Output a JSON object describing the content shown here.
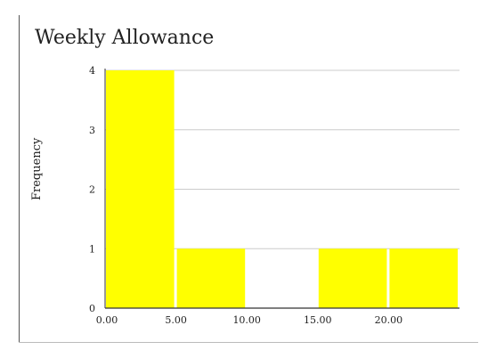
{
  "chart_data": {
    "type": "bar",
    "title": "Weekly Allowance",
    "xlabel": "",
    "ylabel": "Frequency",
    "bins": [
      {
        "start": 0,
        "end": 5,
        "value": 4
      },
      {
        "start": 5,
        "end": 10,
        "value": 1
      },
      {
        "start": 10,
        "end": 15,
        "value": 0
      },
      {
        "start": 15,
        "end": 20,
        "value": 1
      },
      {
        "start": 20,
        "end": 25,
        "value": 1
      }
    ],
    "x_ticks": [
      "0.00",
      "5.00",
      "10.00",
      "15.00",
      "20.00"
    ],
    "y_ticks": [
      "0",
      "1",
      "2",
      "3",
      "4"
    ],
    "xlim": [
      0,
      25
    ],
    "ylim": [
      0,
      4
    ],
    "grid": true,
    "bar_color": "#ffff00"
  }
}
